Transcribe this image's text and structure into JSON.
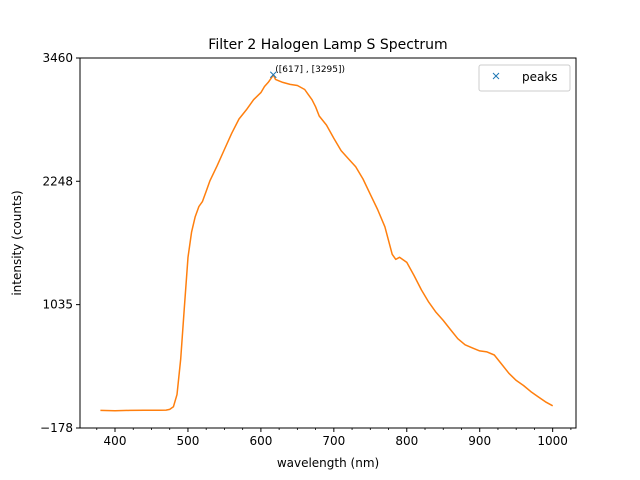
{
  "chart_data": {
    "type": "line",
    "title": "Filter 2 Halogen Lamp S Spectrum",
    "xlabel": "wavelength (nm)",
    "ylabel": "intensity (counts)",
    "xlim": [
      352,
      1032
    ],
    "ylim": [
      -178,
      3460
    ],
    "xticks": [
      400,
      500,
      600,
      700,
      800,
      900,
      1000
    ],
    "xtick_labels": [
      "400",
      "500",
      "600",
      "700",
      "800",
      "900",
      "1000"
    ],
    "xticks_minor": [
      375,
      425,
      450,
      475,
      525,
      550,
      575,
      625,
      650,
      675,
      725,
      750,
      775,
      825,
      850,
      875,
      925,
      950,
      975,
      1025
    ],
    "yticks": [
      -178,
      1035,
      2248,
      3460
    ],
    "ytick_labels": [
      "−178",
      "1035",
      "2248",
      "3460"
    ],
    "grid": false,
    "legend_position": "top-right",
    "series": [
      {
        "name": "",
        "color": "#ff7f0e",
        "x": [
          380,
          400,
          420,
          440,
          460,
          470,
          475,
          480,
          485,
          490,
          495,
          500,
          505,
          510,
          515,
          520,
          525,
          530,
          540,
          550,
          560,
          570,
          580,
          590,
          600,
          605,
          610,
          615,
          617,
          620,
          625,
          630,
          640,
          650,
          660,
          665,
          670,
          675,
          680,
          690,
          700,
          710,
          720,
          730,
          740,
          750,
          760,
          770,
          780,
          785,
          790,
          800,
          810,
          820,
          830,
          840,
          850,
          860,
          870,
          880,
          890,
          900,
          910,
          920,
          930,
          940,
          950,
          960,
          970,
          980,
          990,
          1000
        ],
        "y": [
          -5,
          -8,
          -5,
          -4,
          -3,
          -2,
          5,
          30,
          150,
          500,
          1000,
          1500,
          1750,
          1900,
          2000,
          2050,
          2150,
          2250,
          2400,
          2560,
          2720,
          2860,
          2950,
          3050,
          3120,
          3180,
          3220,
          3270,
          3295,
          3250,
          3235,
          3220,
          3200,
          3190,
          3150,
          3100,
          3050,
          2980,
          2890,
          2800,
          2670,
          2550,
          2470,
          2390,
          2270,
          2120,
          1970,
          1800,
          1530,
          1480,
          1500,
          1450,
          1320,
          1180,
          1060,
          960,
          880,
          790,
          700,
          640,
          610,
          580,
          570,
          540,
          450,
          360,
          290,
          240,
          180,
          130,
          80,
          40
        ]
      }
    ],
    "peak": {
      "x": 617,
      "y": 3295,
      "label": "([617] , [3295])",
      "marker_color": "#1f77b4"
    },
    "legend": [
      {
        "label": "peaks",
        "marker": "x",
        "color": "#1f77b4"
      }
    ]
  }
}
